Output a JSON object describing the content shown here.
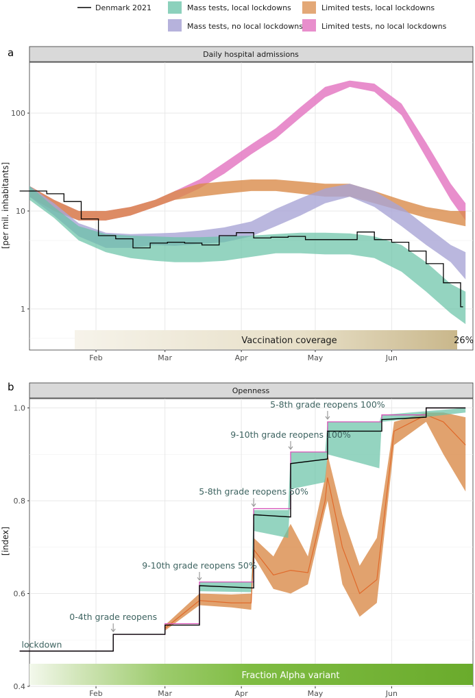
{
  "legend": {
    "denmark": {
      "label": "Denmark 2021",
      "color": "#000000"
    },
    "mass_local": {
      "label": "Mass tests, local lockdowns",
      "color": "#66c2a5"
    },
    "limited_local": {
      "label": "Limited tests, local lockdowns",
      "color": "#d98b4a"
    },
    "mass_nolocal": {
      "label": "Mass tests, no local lockdowns",
      "color": "#a9a5d6"
    },
    "limited_nolocal": {
      "label": "Limited tests, no local lockdowns",
      "color": "#e47ac3"
    }
  },
  "chart_data": [
    {
      "panel": "a",
      "type": "area",
      "title": "Daily hospital admissions",
      "ylabel": "[per mil. inhabitants]",
      "yscale": "log",
      "ylim": [
        0.38,
        330
      ],
      "yticks": [
        "1",
        "10",
        "100"
      ],
      "xticks": [
        "Feb",
        "Mar",
        "Apr",
        "May",
        "Jun"
      ],
      "x": [
        "2021-01-05",
        "2021-01-15",
        "2021-01-25",
        "2021-02-05",
        "2021-02-15",
        "2021-02-25",
        "2021-03-05",
        "2021-03-15",
        "2021-03-25",
        "2021-04-05",
        "2021-04-15",
        "2021-04-25",
        "2021-05-05",
        "2021-05-15",
        "2021-05-25",
        "2021-06-05",
        "2021-06-15",
        "2021-06-25",
        "2021-07-01"
      ],
      "series": [
        {
          "key": "limited_nolocal",
          "lower": [
            14,
            10,
            8,
            8,
            9,
            11,
            13,
            17,
            24,
            38,
            55,
            90,
            145,
            185,
            165,
            95,
            35,
            13,
            8
          ],
          "upper": [
            18,
            13,
            10,
            10,
            11,
            13,
            16,
            21,
            31,
            48,
            70,
            115,
            185,
            215,
            200,
            125,
            50,
            19,
            12
          ]
        },
        {
          "key": "limited_local",
          "lower": [
            14,
            10,
            8,
            8,
            9,
            11,
            13,
            14,
            15,
            16,
            16,
            15,
            14,
            14,
            12,
            10,
            8.5,
            7.5,
            7
          ],
          "upper": [
            18,
            13,
            10,
            10,
            11,
            13,
            16,
            19,
            20,
            21,
            21,
            20,
            19,
            19,
            16,
            13,
            11,
            10,
            10
          ]
        },
        {
          "key": "mass_nolocal",
          "lower": [
            14,
            9,
            5.5,
            4.2,
            4.2,
            4.5,
            4.4,
            4.6,
            4.8,
            5.5,
            7,
            9,
            12,
            14,
            11,
            7,
            4.5,
            3,
            2
          ]
        },
        {
          "key": "mass_local",
          "lower": [
            13,
            8.5,
            5,
            3.8,
            3.3,
            3.1,
            3.0,
            3.0,
            3.1,
            3.4,
            3.7,
            3.7,
            3.6,
            3.6,
            3.3,
            2.4,
            1.5,
            0.9,
            0.7
          ]
        }
      ],
      "mass_nolocal_upper": [
        18,
        12,
        7.5,
        6,
        5.8,
        5.9,
        6,
        6.3,
        6.8,
        7.8,
        10.5,
        13.5,
        17,
        19,
        16,
        11,
        7,
        4.5,
        3.8
      ],
      "mass_local_upper": [
        18,
        11,
        7,
        5.8,
        5.6,
        5.5,
        5.4,
        5.4,
        5.5,
        5.6,
        5.8,
        6,
        6,
        5.9,
        5.5,
        4.5,
        3,
        1.8,
        1.5
      ],
      "denmark_steps": {
        "x": [
          "2021-01-01",
          "2021-01-08",
          "2021-01-12",
          "2021-01-19",
          "2021-01-26",
          "2021-02-02",
          "2021-02-09",
          "2021-02-16",
          "2021-02-23",
          "2021-03-02",
          "2021-03-09",
          "2021-03-16",
          "2021-03-23",
          "2021-03-30",
          "2021-04-06",
          "2021-04-13",
          "2021-04-20",
          "2021-04-27",
          "2021-05-04",
          "2021-05-11",
          "2021-05-18",
          "2021-05-25",
          "2021-06-01",
          "2021-06-08",
          "2021-06-15",
          "2021-06-22",
          "2021-06-29"
        ],
        "y": [
          16,
          16,
          15,
          12.5,
          8.3,
          5.6,
          5.2,
          4.2,
          4.7,
          4.8,
          4.7,
          4.5,
          5.6,
          6,
          5.3,
          5.4,
          5.5,
          5.1,
          5.1,
          5.1,
          6.1,
          5.1,
          4.8,
          3.9,
          2.9,
          1.85,
          1.05
        ]
      },
      "vaccination": {
        "label": "Vaccination coverage",
        "end_value": "26%"
      }
    },
    {
      "panel": "b",
      "type": "line",
      "title": "Openness",
      "ylabel": "[index]",
      "ylim": [
        0.4,
        1.02
      ],
      "yticks": [
        "0.4",
        "0.6",
        "0.8",
        "1.0"
      ],
      "xticks": [
        "Feb",
        "Mar",
        "Apr",
        "May",
        "Jun"
      ],
      "annotations": [
        {
          "text": "lockdown",
          "date": "2021-01-10",
          "value": 0.476,
          "arrow": false
        },
        {
          "text": "0-4th grade reopens",
          "date": "2021-02-08",
          "value": 0.512,
          "arrow": true
        },
        {
          "text": "9-10th grade reopens 50%",
          "date": "2021-03-15",
          "value": 0.623,
          "arrow": true
        },
        {
          "text": "5-8th grade reopens 50%",
          "date": "2021-04-06",
          "value": 0.782,
          "arrow": true
        },
        {
          "text": "9-10th grade reopens 100%",
          "date": "2021-04-21",
          "value": 0.905,
          "arrow": true
        },
        {
          "text": "5-8th grade reopens 100%",
          "date": "2021-05-06",
          "value": 0.97,
          "arrow": true
        }
      ],
      "denmark": {
        "x": [
          "2021-01-01",
          "2021-02-08",
          "2021-02-08",
          "2021-03-01",
          "2021-03-01",
          "2021-03-15",
          "2021-03-15",
          "2021-04-06",
          "2021-04-06",
          "2021-04-21",
          "2021-04-21",
          "2021-05-06",
          "2021-05-06",
          "2021-05-28",
          "2021-05-28",
          "2021-06-15",
          "2021-06-15",
          "2021-07-01"
        ],
        "y": [
          0.476,
          0.476,
          0.512,
          0.512,
          0.532,
          0.532,
          0.617,
          0.612,
          0.77,
          0.765,
          0.88,
          0.89,
          0.95,
          0.95,
          0.975,
          0.98,
          1.0,
          1.0
        ]
      },
      "limited_nolocal_line": {
        "x": [
          "2021-01-01",
          "2021-02-08",
          "2021-02-08",
          "2021-03-01",
          "2021-03-01",
          "2021-03-15",
          "2021-03-15",
          "2021-04-06",
          "2021-04-06",
          "2021-04-21",
          "2021-04-21",
          "2021-05-06",
          "2021-05-06",
          "2021-05-28",
          "2021-05-28",
          "2021-06-15",
          "2021-06-15",
          "2021-07-01"
        ],
        "y": [
          0.476,
          0.476,
          0.512,
          0.512,
          0.535,
          0.535,
          0.625,
          0.625,
          0.783,
          0.783,
          0.905,
          0.905,
          0.97,
          0.97,
          0.985,
          0.985,
          1.0,
          1.0
        ]
      },
      "mass_local_band": {
        "x": [
          "2021-03-15",
          "2021-04-05",
          "2021-04-06",
          "2021-04-20",
          "2021-04-21",
          "2021-05-05",
          "2021-05-06",
          "2021-05-27",
          "2021-05-28",
          "2021-07-01"
        ],
        "lower": [
          0.605,
          0.603,
          0.735,
          0.72,
          0.825,
          0.84,
          0.9,
          0.87,
          0.97,
          0.99
        ],
        "upper": [
          0.625,
          0.625,
          0.78,
          0.78,
          0.905,
          0.905,
          0.97,
          0.97,
          0.985,
          1.0
        ]
      },
      "limited_local_band": {
        "x": [
          "2021-03-01",
          "2021-03-15",
          "2021-03-28",
          "2021-04-05",
          "2021-04-06",
          "2021-04-14",
          "2021-04-21",
          "2021-04-28",
          "2021-05-05",
          "2021-05-06",
          "2021-05-12",
          "2021-05-19",
          "2021-05-26",
          "2021-06-02",
          "2021-06-15",
          "2021-06-22",
          "2021-07-01"
        ],
        "lower": [
          0.52,
          0.575,
          0.57,
          0.565,
          0.68,
          0.61,
          0.6,
          0.62,
          0.78,
          0.8,
          0.62,
          0.55,
          0.58,
          0.92,
          0.97,
          0.9,
          0.82
        ],
        "mid": [
          0.525,
          0.585,
          0.58,
          0.58,
          0.695,
          0.64,
          0.65,
          0.645,
          0.8,
          0.85,
          0.7,
          0.6,
          0.63,
          0.95,
          0.985,
          0.97,
          0.92
        ],
        "upper": [
          0.532,
          0.6,
          0.598,
          0.6,
          0.72,
          0.68,
          0.75,
          0.68,
          0.85,
          0.9,
          0.77,
          0.66,
          0.72,
          0.97,
          0.99,
          0.99,
          0.98
        ]
      },
      "alpha": {
        "label": "Fraction Alpha variant"
      }
    }
  ]
}
